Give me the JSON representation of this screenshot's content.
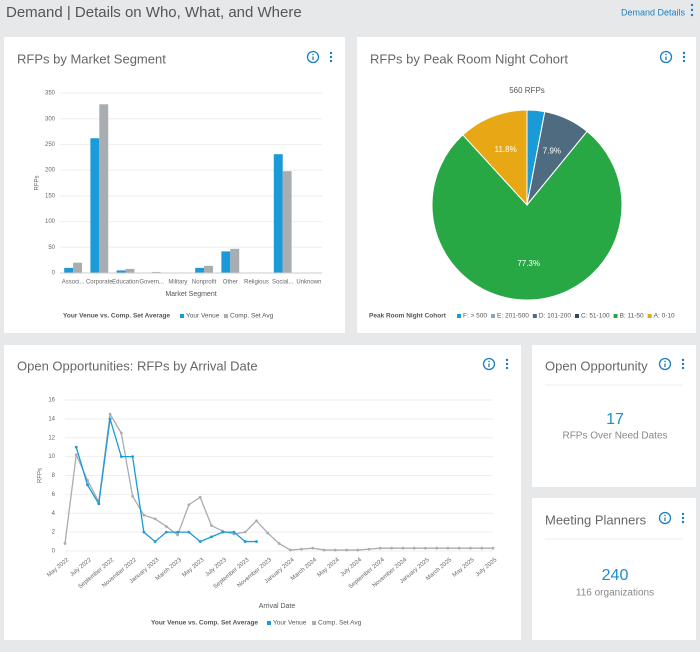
{
  "header": {
    "title": "Demand | Details on Who, What, and Where",
    "link": "Demand Details"
  },
  "chart_data": [
    {
      "type": "bar",
      "title": "RFPs by Market Segment",
      "categories": [
        "Associ...",
        "Corporate",
        "Education",
        "Govern...",
        "Military",
        "Nonprofit",
        "Other",
        "Religious",
        "Social...",
        "Unknown"
      ],
      "series": [
        {
          "name": "Your Venue",
          "color": "#1a9ad6",
          "values": [
            10,
            262,
            5,
            0,
            0,
            10,
            42,
            1,
            231,
            0
          ]
        },
        {
          "name": "Comp. Set Avg",
          "color": "#a7adb1",
          "values": [
            20,
            328,
            8,
            2,
            1,
            14,
            47,
            1,
            198,
            0
          ]
        }
      ],
      "ylim": [
        0,
        350
      ],
      "yticks": [
        0,
        50,
        100,
        150,
        200,
        250,
        300,
        350
      ],
      "grid": true,
      "xlabel": "Market Segment",
      "ylabel": "RFPs",
      "legend_title": "Your Venue vs. Comp. Set Average"
    },
    {
      "type": "pie",
      "title": "RFPs by Peak Room Night Cohort",
      "subtitle": "560 RFPs",
      "categories": [
        "F: > 500",
        "E: 201-500",
        "D: 101-200",
        "C: 51-100",
        "B: 11-50",
        "A: 0-10"
      ],
      "values": [
        3.0,
        0,
        7.9,
        0,
        77.3,
        11.8
      ],
      "value_labels": [
        null,
        null,
        "7.9%",
        null,
        "77.3%",
        "11.8%"
      ],
      "colors": [
        "#1a9ad6",
        "#8fa3b0",
        "#4e6b80",
        "#34495a",
        "#27a844",
        "#e8a815"
      ],
      "legend_title": "Peak Room Night Cohort"
    },
    {
      "type": "line",
      "title": "Open Opportunities: RFPs by Arrival Date",
      "categories": [
        "May 2022",
        null,
        "July 2022",
        null,
        "September 2022",
        null,
        "November 2022",
        null,
        "January 2023",
        null,
        "March 2023",
        null,
        "May 2023",
        null,
        "July 2023",
        null,
        "September 2023",
        null,
        "November 2023",
        null,
        "January 2024",
        null,
        "March 2024",
        null,
        "May 2024",
        null,
        "July 2024",
        null,
        "September 2024",
        null,
        "November 2024",
        null,
        "January 2025",
        null,
        "March 2025",
        null,
        "May 2025",
        null,
        "July 2025"
      ],
      "series": [
        {
          "name": "Your Venue",
          "color": "#1a9ad6",
          "values": [
            null,
            11,
            7,
            5,
            14,
            10,
            10,
            2,
            1,
            2,
            2,
            2,
            1,
            1.5,
            2,
            2,
            1,
            1,
            null,
            null,
            null,
            null,
            null,
            null,
            null,
            null,
            null,
            null,
            null,
            null,
            null,
            null,
            null,
            null,
            null,
            null,
            null,
            null,
            null
          ]
        },
        {
          "name": "Comp. Set Avg",
          "color": "#a7adb1",
          "values": [
            0.8,
            10.2,
            7.5,
            5.2,
            14.5,
            12.5,
            5.8,
            3.8,
            3.4,
            2.6,
            1.7,
            4.9,
            5.7,
            2.7,
            2.1,
            1.8,
            2.0,
            3.2,
            1.9,
            0.8,
            0.1,
            0.2,
            0.3,
            0.1,
            0.1,
            0.1,
            0.1,
            0.2,
            0.3,
            0.3,
            0.3,
            0.3,
            0.3,
            0.3,
            0.3,
            0.3,
            0.3,
            0.3,
            0.3
          ]
        }
      ],
      "ylim": [
        0,
        16
      ],
      "yticks": [
        0,
        2,
        4,
        6,
        8,
        10,
        12,
        14,
        16
      ],
      "grid": true,
      "xlabel": "Arrival Date",
      "ylabel": "RFPs",
      "legend_title": "Your Venue vs. Comp. Set Average"
    }
  ],
  "cards": [
    {
      "title": "Open Opportunity",
      "value": 17,
      "caption": "RFPs Over Need Dates"
    },
    {
      "title": "Meeting Planners",
      "value": 240,
      "caption": "116 organizations"
    }
  ]
}
